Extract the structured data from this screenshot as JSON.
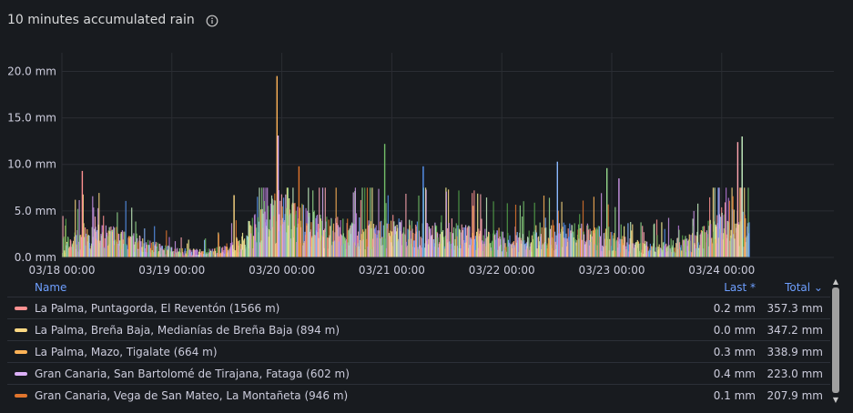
{
  "panel": {
    "title": "10 minutes accumulated rain",
    "info_icon": "info-circle-icon"
  },
  "chart_data": {
    "type": "bar",
    "title": "10 minutes accumulated rain",
    "xlabel": "",
    "ylabel": "",
    "y_unit": "mm",
    "ylim": [
      0,
      22
    ],
    "yticks": [
      "0.0 mm",
      "5.0 mm",
      "10.0 mm",
      "15.0 mm",
      "20.0 mm"
    ],
    "ytick_values": [
      0,
      5,
      10,
      15,
      20
    ],
    "xticks": [
      "03/18 00:00",
      "03/19 00:00",
      "03/20 00:00",
      "03/21 00:00",
      "03/22 00:00",
      "03/23 00:00",
      "03/24 00:00"
    ],
    "x_range_days": [
      0,
      6.25
    ],
    "grid": true,
    "legend_placement": "bottom",
    "notable_peaks": [
      {
        "day": 0.18,
        "value": 9.3
      },
      {
        "day": 1.56,
        "value": 6.7
      },
      {
        "day": 1.95,
        "value": 19.5
      },
      {
        "day": 1.96,
        "value": 13.1
      },
      {
        "day": 2.15,
        "value": 9.8
      },
      {
        "day": 2.93,
        "value": 12.2
      },
      {
        "day": 3.28,
        "value": 9.8
      },
      {
        "day": 4.5,
        "value": 10.3
      },
      {
        "day": 4.95,
        "value": 9.6
      },
      {
        "day": 5.06,
        "value": 8.5
      },
      {
        "day": 6.14,
        "value": 12.4
      },
      {
        "day": 6.18,
        "value": 13.0
      }
    ],
    "series": [
      {
        "name": "La Palma, Puntagorda, El Reventón (1566 m)",
        "color": "#ff9191",
        "last": "0.2 mm",
        "total": "357.3 mm"
      },
      {
        "name": "La Palma, Breña Baja, Medianías de Breña Baja (894 m)",
        "color": "#fcd883",
        "last": "0.0 mm",
        "total": "347.2 mm"
      },
      {
        "name": "La Palma, Mazo, Tigalate (664 m)",
        "color": "#ffb357",
        "last": "0.3 mm",
        "total": "338.9 mm"
      },
      {
        "name": "Gran Canaria, San Bartolomé de Tirajana, Fataga (602 m)",
        "color": "#dcb0f7",
        "last": "0.4 mm",
        "total": "223.0 mm"
      },
      {
        "name": "Gran Canaria, Vega de San Mateo, La Montañeta (946 m)",
        "color": "#e0752d",
        "last": "0.1 mm",
        "total": "207.9 mm"
      }
    ],
    "extra_colors": [
      "#73bf69",
      "#5794f2",
      "#8ab8ff",
      "#96d98d",
      "#ca95e5",
      "#ffa6b0",
      "#c8f2c2",
      "#56a64b",
      "#fff899",
      "#b877d9"
    ]
  },
  "legend": {
    "col_name": "Name",
    "col_last": "Last *",
    "col_total": "Total ⌄"
  }
}
